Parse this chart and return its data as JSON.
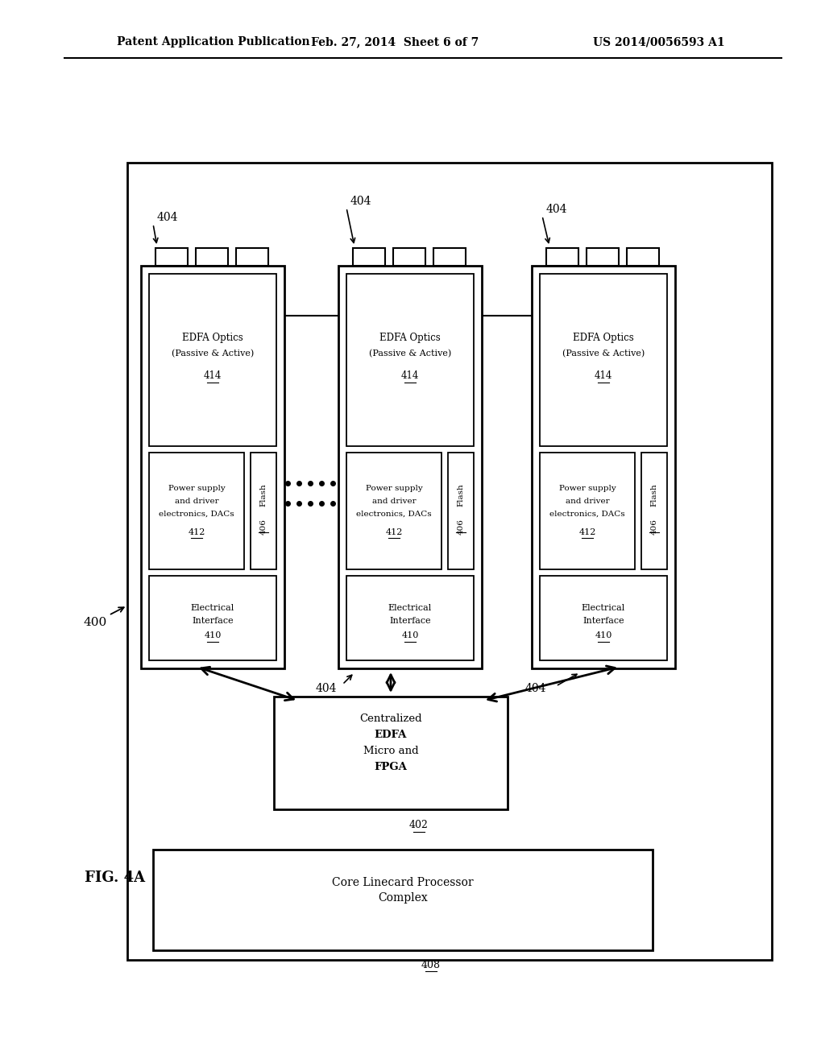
{
  "header_left": "Patent Application Publication",
  "header_center": "Feb. 27, 2014  Sheet 6 of 7",
  "header_right": "US 2014/0056593 A1",
  "fig_label": "FIG. 4A",
  "bg_color": "#ffffff"
}
